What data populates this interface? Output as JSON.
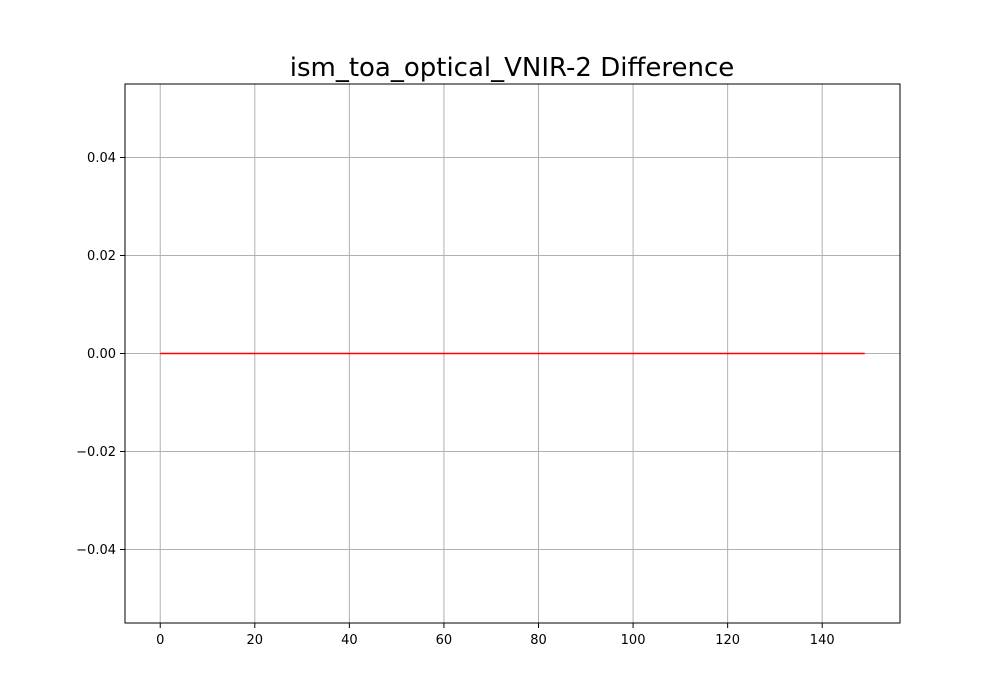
{
  "chart_data": {
    "type": "line",
    "title": "ism_toa_optical_VNIR-2 Difference",
    "xlabel": "",
    "ylabel": "",
    "xlim": [
      -7.45,
      156.45
    ],
    "ylim": [
      -0.055,
      0.055
    ],
    "xticks": [
      0,
      20,
      40,
      60,
      80,
      100,
      120,
      140
    ],
    "xtick_labels": [
      "0",
      "20",
      "40",
      "60",
      "80",
      "100",
      "120",
      "140"
    ],
    "yticks": [
      -0.04,
      -0.02,
      0.0,
      0.02,
      0.04
    ],
    "ytick_labels": [
      "−0.04",
      "−0.02",
      "0.00",
      "0.02",
      "0.04"
    ],
    "grid": true,
    "series": [
      {
        "x": [
          0,
          149
        ],
        "y": [
          0.0,
          0.0
        ],
        "color": "#ff0000"
      }
    ]
  }
}
